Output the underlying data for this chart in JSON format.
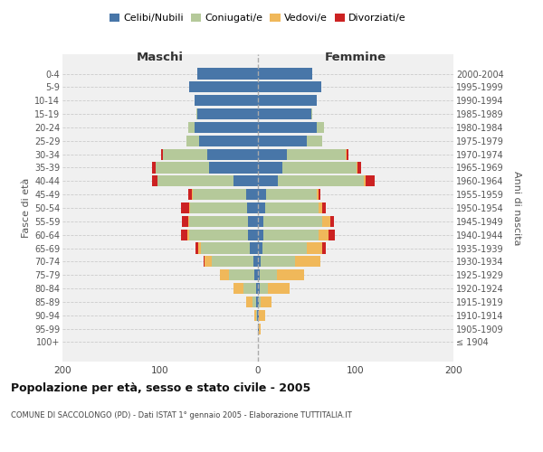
{
  "age_groups": [
    "100+",
    "95-99",
    "90-94",
    "85-89",
    "80-84",
    "75-79",
    "70-74",
    "65-69",
    "60-64",
    "55-59",
    "50-54",
    "45-49",
    "40-44",
    "35-39",
    "30-34",
    "25-29",
    "20-24",
    "15-19",
    "10-14",
    "5-9",
    "0-4"
  ],
  "birth_years": [
    "≤ 1904",
    "1905-1909",
    "1910-1914",
    "1915-1919",
    "1920-1924",
    "1925-1929",
    "1930-1934",
    "1935-1939",
    "1940-1944",
    "1945-1949",
    "1950-1954",
    "1955-1959",
    "1960-1964",
    "1965-1969",
    "1970-1974",
    "1975-1979",
    "1980-1984",
    "1985-1989",
    "1990-1994",
    "1995-1999",
    "2000-2004"
  ],
  "maschi": {
    "celibi": [
      0,
      0,
      1,
      2,
      2,
      4,
      5,
      8,
      10,
      10,
      11,
      12,
      25,
      50,
      52,
      60,
      65,
      62,
      65,
      70,
      62
    ],
    "coniugati": [
      0,
      0,
      1,
      4,
      13,
      26,
      42,
      50,
      60,
      60,
      58,
      55,
      78,
      55,
      45,
      13,
      6,
      1,
      0,
      0,
      0
    ],
    "vedovi": [
      0,
      0,
      2,
      6,
      10,
      9,
      8,
      3,
      2,
      1,
      1,
      1,
      0,
      0,
      0,
      0,
      0,
      0,
      0,
      0,
      0
    ],
    "divorziati": [
      0,
      0,
      0,
      0,
      0,
      0,
      1,
      3,
      7,
      7,
      9,
      3,
      5,
      3,
      2,
      0,
      0,
      0,
      0,
      0,
      0
    ]
  },
  "femmine": {
    "nubili": [
      0,
      1,
      1,
      1,
      2,
      2,
      3,
      5,
      6,
      6,
      7,
      8,
      20,
      25,
      30,
      50,
      60,
      55,
      60,
      65,
      56
    ],
    "coniugate": [
      0,
      0,
      0,
      2,
      8,
      17,
      35,
      45,
      56,
      60,
      55,
      52,
      88,
      76,
      60,
      16,
      8,
      1,
      0,
      0,
      0
    ],
    "vedove": [
      0,
      2,
      6,
      11,
      22,
      28,
      26,
      16,
      10,
      8,
      4,
      2,
      2,
      1,
      1,
      0,
      0,
      0,
      0,
      0,
      0
    ],
    "divorziate": [
      0,
      0,
      0,
      0,
      0,
      0,
      0,
      3,
      7,
      4,
      3,
      2,
      9,
      4,
      2,
      0,
      0,
      0,
      0,
      0,
      0
    ]
  },
  "colors": {
    "celibi": "#4876a8",
    "coniugati": "#b5c99a",
    "vedovi": "#f0b85a",
    "divorziati": "#cc2222"
  },
  "xlim": 200,
  "title": "Popolazione per età, sesso e stato civile - 2005",
  "subtitle": "COMUNE DI SACCOLONGO (PD) - Dati ISTAT 1° gennaio 2005 - Elaborazione TUTTITALIA.IT",
  "ylabel_left": "Fasce di età",
  "ylabel_right": "Anni di nascita",
  "xlabel_left": "Maschi",
  "xlabel_right": "Femmine",
  "bg_color": "#f0f0f0",
  "grid_color": "#cccccc"
}
